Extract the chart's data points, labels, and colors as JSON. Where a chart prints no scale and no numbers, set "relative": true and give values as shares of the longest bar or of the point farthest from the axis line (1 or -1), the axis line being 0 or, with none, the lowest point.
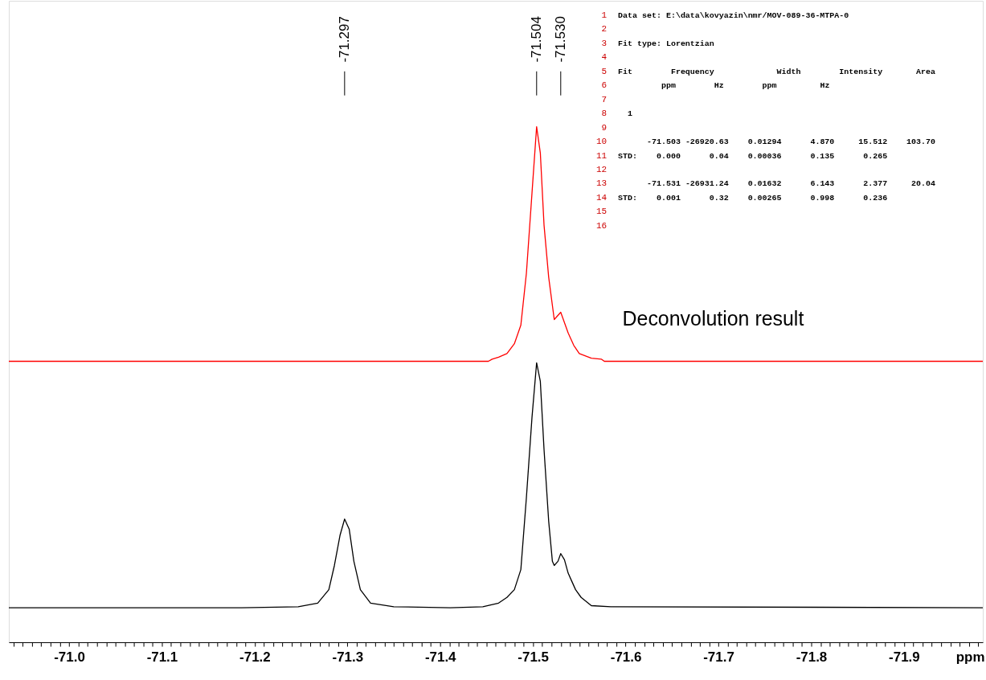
{
  "chart_data": {
    "type": "line",
    "relative": true,
    "xlabel": "ppm",
    "xlim": [
      -70.935,
      -71.985
    ],
    "xticks": [
      {
        "value": -70.94,
        "label": null
      },
      {
        "value": -70.95,
        "label": null
      },
      {
        "value": -70.96,
        "label": null
      },
      {
        "value": -70.97,
        "label": null
      },
      {
        "value": -70.98,
        "label": null
      },
      {
        "value": -70.99,
        "label": null
      },
      {
        "value": -71.0,
        "label": "-71.0"
      },
      {
        "value": -71.01,
        "label": null
      },
      {
        "value": -71.02,
        "label": null
      },
      {
        "value": -71.03,
        "label": null
      },
      {
        "value": -71.04,
        "label": null
      },
      {
        "value": -71.05,
        "label": null
      },
      {
        "value": -71.06,
        "label": null
      },
      {
        "value": -71.07,
        "label": null
      },
      {
        "value": -71.08,
        "label": null
      },
      {
        "value": -71.09,
        "label": null
      },
      {
        "value": -71.1,
        "label": "-71.1"
      },
      {
        "value": -71.11,
        "label": null
      },
      {
        "value": -71.12,
        "label": null
      },
      {
        "value": -71.13,
        "label": null
      },
      {
        "value": -71.14,
        "label": null
      },
      {
        "value": -71.15,
        "label": null
      },
      {
        "value": -71.16,
        "label": null
      },
      {
        "value": -71.17,
        "label": null
      },
      {
        "value": -71.18,
        "label": null
      },
      {
        "value": -71.19,
        "label": null
      },
      {
        "value": -71.2,
        "label": "-71.2"
      },
      {
        "value": -71.21,
        "label": null
      },
      {
        "value": -71.22,
        "label": null
      },
      {
        "value": -71.23,
        "label": null
      },
      {
        "value": -71.24,
        "label": null
      },
      {
        "value": -71.25,
        "label": null
      },
      {
        "value": -71.26,
        "label": null
      },
      {
        "value": -71.27,
        "label": null
      },
      {
        "value": -71.28,
        "label": null
      },
      {
        "value": -71.29,
        "label": null
      },
      {
        "value": -71.3,
        "label": "-71.3"
      },
      {
        "value": -71.31,
        "label": null
      },
      {
        "value": -71.32,
        "label": null
      },
      {
        "value": -71.33,
        "label": null
      },
      {
        "value": -71.34,
        "label": null
      },
      {
        "value": -71.35,
        "label": null
      },
      {
        "value": -71.36,
        "label": null
      },
      {
        "value": -71.37,
        "label": null
      },
      {
        "value": -71.38,
        "label": null
      },
      {
        "value": -71.39,
        "label": null
      },
      {
        "value": -71.4,
        "label": "-71.4"
      },
      {
        "value": -71.41,
        "label": null
      },
      {
        "value": -71.42,
        "label": null
      },
      {
        "value": -71.43,
        "label": null
      },
      {
        "value": -71.44,
        "label": null
      },
      {
        "value": -71.45,
        "label": null
      },
      {
        "value": -71.46,
        "label": null
      },
      {
        "value": -71.47,
        "label": null
      },
      {
        "value": -71.48,
        "label": null
      },
      {
        "value": -71.49,
        "label": null
      },
      {
        "value": -71.5,
        "label": "-71.5"
      },
      {
        "value": -71.51,
        "label": null
      },
      {
        "value": -71.52,
        "label": null
      },
      {
        "value": -71.53,
        "label": null
      },
      {
        "value": -71.54,
        "label": null
      },
      {
        "value": -71.55,
        "label": null
      },
      {
        "value": -71.56,
        "label": null
      },
      {
        "value": -71.57,
        "label": null
      },
      {
        "value": -71.58,
        "label": null
      },
      {
        "value": -71.59,
        "label": null
      },
      {
        "value": -71.6,
        "label": "-71.6"
      },
      {
        "value": -71.61,
        "label": null
      },
      {
        "value": -71.62,
        "label": null
      },
      {
        "value": -71.63,
        "label": null
      },
      {
        "value": -71.64,
        "label": null
      },
      {
        "value": -71.65,
        "label": null
      },
      {
        "value": -71.66,
        "label": null
      },
      {
        "value": -71.67,
        "label": null
      },
      {
        "value": -71.68,
        "label": null
      },
      {
        "value": -71.69,
        "label": null
      },
      {
        "value": -71.7,
        "label": "-71.7"
      },
      {
        "value": -71.71,
        "label": null
      },
      {
        "value": -71.72,
        "label": null
      },
      {
        "value": -71.73,
        "label": null
      },
      {
        "value": -71.74,
        "label": null
      },
      {
        "value": -71.75,
        "label": null
      },
      {
        "value": -71.76,
        "label": null
      },
      {
        "value": -71.77,
        "label": null
      },
      {
        "value": -71.78,
        "label": null
      },
      {
        "value": -71.79,
        "label": null
      },
      {
        "value": -71.8,
        "label": "-71.8"
      },
      {
        "value": -71.81,
        "label": null
      },
      {
        "value": -71.82,
        "label": null
      },
      {
        "value": -71.83,
        "label": null
      },
      {
        "value": -71.84,
        "label": null
      },
      {
        "value": -71.85,
        "label": null
      },
      {
        "value": -71.86,
        "label": null
      },
      {
        "value": -71.87,
        "label": null
      },
      {
        "value": -71.88,
        "label": null
      },
      {
        "value": -71.89,
        "label": null
      },
      {
        "value": -71.9,
        "label": "-71.9"
      },
      {
        "value": -71.91,
        "label": null
      },
      {
        "value": -71.92,
        "label": null
      },
      {
        "value": -71.93,
        "label": null
      },
      {
        "value": -71.94,
        "label": null
      },
      {
        "value": -71.95,
        "label": null
      },
      {
        "value": -71.96,
        "label": null
      },
      {
        "value": -71.97,
        "label": null
      },
      {
        "value": -71.98,
        "label": null
      }
    ],
    "tick_labels": "x",
    "grid": false,
    "legend": false,
    "line_style": "solid",
    "series": [
      {
        "name": "Deconvolution result",
        "color": "#ff0000",
        "x": [
          -70.935,
          -71.452,
          -71.456,
          -71.463,
          -71.472,
          -71.48,
          -71.487,
          -71.493,
          -71.499,
          -71.504,
          -71.508,
          -71.512,
          -71.517,
          -71.523,
          -71.53,
          -71.538,
          -71.544,
          -71.55,
          -71.563,
          -71.574,
          -71.577,
          -71.985
        ],
        "values": [
          0.545,
          0.545,
          0.549,
          0.553,
          0.56,
          0.579,
          0.615,
          0.716,
          0.871,
          1,
          0.949,
          0.809,
          0.708,
          0.626,
          0.64,
          0.6,
          0.576,
          0.56,
          0.551,
          0.549,
          0.545,
          0.545
        ]
      },
      {
        "color": "#000000",
        "x": [
          -70.935,
          -71.186,
          -71.247,
          -71.268,
          -71.28,
          -71.286,
          -71.292,
          -71.297,
          -71.302,
          -71.307,
          -71.314,
          -71.325,
          -71.35,
          -71.411,
          -71.446,
          -71.463,
          -71.472,
          -71.48,
          -71.487,
          -71.493,
          -71.499,
          -71.504,
          -71.508,
          -71.512,
          -71.517,
          -71.521,
          -71.523,
          -71.527,
          -71.53,
          -71.534,
          -71.538,
          -71.542,
          -71.546,
          -71.552,
          -71.563,
          -71.584,
          -71.985
        ],
        "values": [
          0.067,
          0.067,
          0.069,
          0.076,
          0.102,
          0.149,
          0.207,
          0.239,
          0.219,
          0.157,
          0.102,
          0.076,
          0.069,
          0.067,
          0.069,
          0.076,
          0.087,
          0.102,
          0.141,
          0.281,
          0.436,
          0.542,
          0.506,
          0.374,
          0.235,
          0.157,
          0.149,
          0.157,
          0.172,
          0.16,
          0.134,
          0.118,
          0.102,
          0.087,
          0.071,
          0.069,
          0.067
        ]
      }
    ],
    "annotations": [
      {
        "text": "-71.297",
        "x": -71.297
      },
      {
        "text": "-71.504",
        "x": -71.504
      },
      {
        "text": "-71.530",
        "x": -71.53
      },
      "1 Data set: E:\\data\\kovyazin\\nmr/MOV-089-36-MTPA-0",
      "2",
      "3 Fit type: Lorentzian",
      "4",
      "5 Fit        Frequency             Width        Intensity       Area",
      "6          ppm        Hz        ppm         Hz",
      "7",
      "8   1",
      "9",
      "10       -71.503 -26920.63    0.01294      4.870     15.512    103.70",
      "11 STD:    0.000      0.04    0.00036      0.135      0.265",
      "12",
      "13       -71.531 -26931.24    0.01632      6.143      2.377     20.04",
      "14 STD:    0.001      0.32    0.00265      0.998      0.236",
      "15",
      "16"
    ]
  }
}
